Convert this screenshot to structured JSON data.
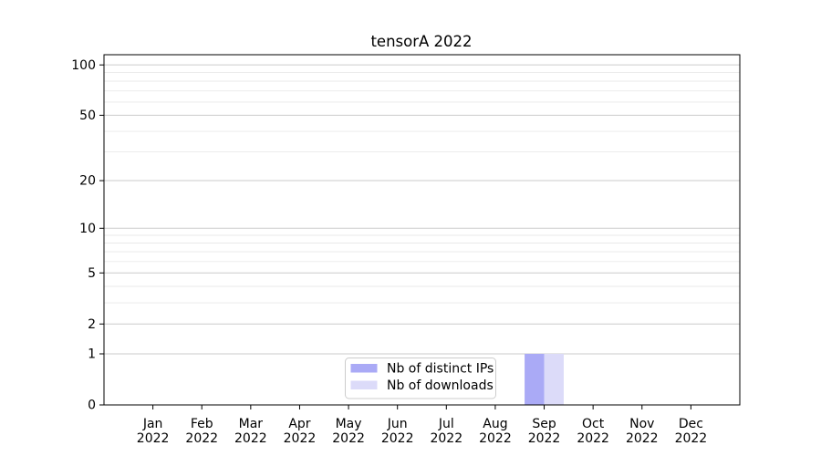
{
  "chart_data": {
    "type": "bar",
    "title": "tensorA 2022",
    "categories": [
      "Jan 2022",
      "Feb 2022",
      "Mar 2022",
      "Apr 2022",
      "May 2022",
      "Jun 2022",
      "Jul 2022",
      "Aug 2022",
      "Sep 2022",
      "Oct 2022",
      "Nov 2022",
      "Dec 2022"
    ],
    "series": [
      {
        "name": "Nb of distinct IPs",
        "color": "#aaaaf6",
        "values": [
          0,
          0,
          0,
          0,
          0,
          0,
          0,
          0,
          1,
          0,
          0,
          0
        ]
      },
      {
        "name": "Nb of downloads",
        "color": "#dcdbf9",
        "values": [
          0,
          0,
          0,
          0,
          0,
          0,
          0,
          0,
          1,
          0,
          0,
          0
        ]
      }
    ],
    "xlabel": "",
    "ylabel": "",
    "yscale": "log1p",
    "ylim": [
      0,
      115
    ],
    "y_major_ticks": [
      0,
      1,
      2,
      5,
      10,
      20,
      50,
      100
    ],
    "y_minor_ticks": [
      3,
      4,
      6,
      7,
      8,
      9,
      30,
      40,
      60,
      70,
      80,
      90
    ],
    "grid": true,
    "legend_position": "lower center"
  },
  "colors": {
    "background": "#ffffff",
    "spine": "#000000",
    "tick": "#000000",
    "text": "#000000",
    "major_grid": "#cbcbcb",
    "minor_grid": "#e9e9e9",
    "legend_bg": "#ffffff",
    "legend_border": "#cccccc"
  }
}
